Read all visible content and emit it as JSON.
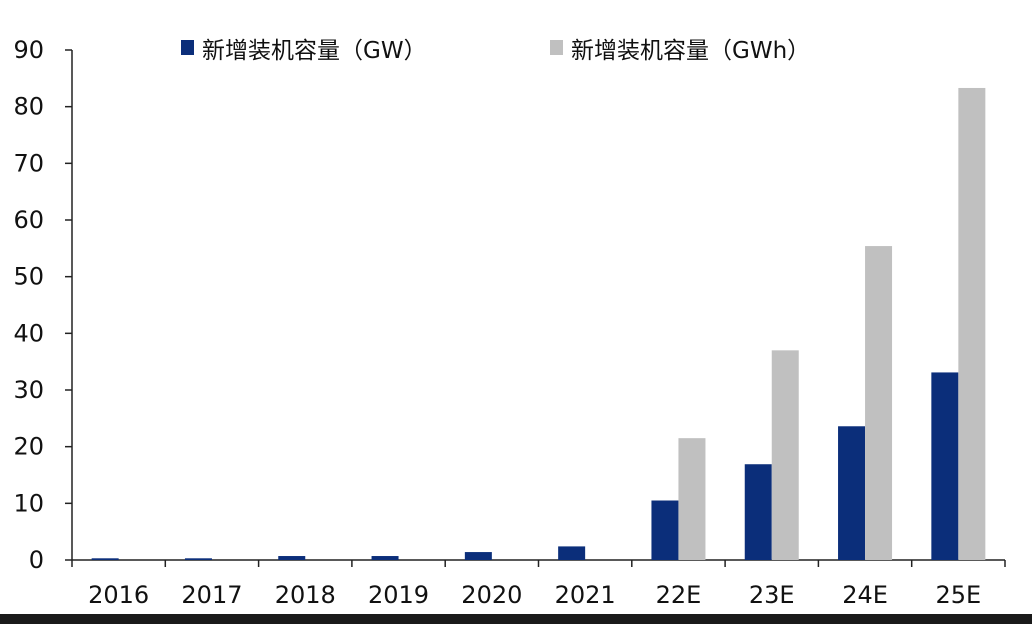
{
  "chart_data": {
    "type": "bar",
    "categories": [
      "2016",
      "2017",
      "2018",
      "2019",
      "2020",
      "2021",
      "22E",
      "23E",
      "24E",
      "25E"
    ],
    "series": [
      {
        "name": "新增装机容量（GW）",
        "color": "#0b2e7a",
        "values": [
          0.3,
          0.3,
          0.7,
          0.7,
          1.4,
          2.4,
          10.5,
          16.9,
          23.6,
          33.1
        ]
      },
      {
        "name": "新增装机容量（GWh）",
        "color": "#c0c0c0",
        "values": [
          null,
          null,
          null,
          null,
          null,
          null,
          21.5,
          37.0,
          55.4,
          83.3
        ]
      }
    ],
    "yticks": [
      0,
      10,
      20,
      30,
      40,
      50,
      60,
      70,
      80,
      90
    ],
    "ylim": [
      0,
      90
    ],
    "legend_position": "top",
    "grid": false
  }
}
